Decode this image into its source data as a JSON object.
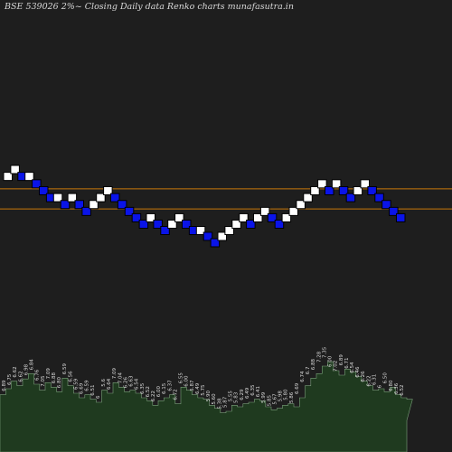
{
  "chart_data": {
    "type": "renko",
    "title": "BSE 539026  2%~  Closing Daily data  Renko  charts munafasutra.in",
    "brick_size_pct": 2,
    "colors": {
      "background": "#1e1e1e",
      "up_brick": "#ffffff",
      "down_brick": "#0a14e8",
      "brick_border": "#000000",
      "reference_line": "#c8780a",
      "volume_fill": "#1f3a1f",
      "volume_stroke": "#7aa07a",
      "label_color": "#dddddd"
    },
    "bricks": [
      {
        "dir": "up",
        "level": 6.89
      },
      {
        "dir": "up",
        "level": 7.02
      },
      {
        "dir": "down",
        "level": 6.89
      },
      {
        "dir": "up",
        "level": 6.89
      },
      {
        "dir": "down",
        "level": 6.75
      },
      {
        "dir": "down",
        "level": 6.62
      },
      {
        "dir": "down",
        "level": 6.49
      },
      {
        "dir": "up",
        "level": 6.49
      },
      {
        "dir": "down",
        "level": 6.36
      },
      {
        "dir": "up",
        "level": 6.49
      },
      {
        "dir": "down",
        "level": 6.36
      },
      {
        "dir": "down",
        "level": 6.23
      },
      {
        "dir": "up",
        "level": 6.36
      },
      {
        "dir": "up",
        "level": 6.49
      },
      {
        "dir": "up",
        "level": 6.62
      },
      {
        "dir": "down",
        "level": 6.49
      },
      {
        "dir": "down",
        "level": 6.36
      },
      {
        "dir": "down",
        "level": 6.23
      },
      {
        "dir": "down",
        "level": 6.11
      },
      {
        "dir": "down",
        "level": 5.99
      },
      {
        "dir": "up",
        "level": 6.11
      },
      {
        "dir": "down",
        "level": 5.99
      },
      {
        "dir": "down",
        "level": 5.87
      },
      {
        "dir": "up",
        "level": 5.99
      },
      {
        "dir": "up",
        "level": 6.11
      },
      {
        "dir": "down",
        "level": 5.99
      },
      {
        "dir": "down",
        "level": 5.87
      },
      {
        "dir": "up",
        "level": 5.87
      },
      {
        "dir": "down",
        "level": 5.76
      },
      {
        "dir": "down",
        "level": 5.64
      },
      {
        "dir": "up",
        "level": 5.76
      },
      {
        "dir": "up",
        "level": 5.87
      },
      {
        "dir": "up",
        "level": 5.99
      },
      {
        "dir": "up",
        "level": 6.11
      },
      {
        "dir": "down",
        "level": 5.99
      },
      {
        "dir": "up",
        "level": 6.11
      },
      {
        "dir": "up",
        "level": 6.23
      },
      {
        "dir": "down",
        "level": 6.11
      },
      {
        "dir": "down",
        "level": 5.99
      },
      {
        "dir": "up",
        "level": 6.11
      },
      {
        "dir": "up",
        "level": 6.23
      },
      {
        "dir": "up",
        "level": 6.36
      },
      {
        "dir": "up",
        "level": 6.49
      },
      {
        "dir": "up",
        "level": 6.62
      },
      {
        "dir": "up",
        "level": 6.75
      },
      {
        "dir": "down",
        "level": 6.62
      },
      {
        "dir": "up",
        "level": 6.75
      },
      {
        "dir": "down",
        "level": 6.62
      },
      {
        "dir": "down",
        "level": 6.49
      },
      {
        "dir": "up",
        "level": 6.62
      },
      {
        "dir": "up",
        "level": 6.75
      },
      {
        "dir": "down",
        "level": 6.62
      },
      {
        "dir": "down",
        "level": 6.49
      },
      {
        "dir": "down",
        "level": 6.36
      },
      {
        "dir": "down",
        "level": 6.23
      },
      {
        "dir": "down",
        "level": 6.11
      }
    ],
    "reference_lines": [
      6.58,
      6.2
    ],
    "volume_labels": [
      "6.89",
      "6.75",
      "6.62",
      "6.62",
      "6.98",
      "6.84",
      "6.76",
      "7.05",
      "7.09",
      "6.88",
      "6.80",
      "6.59",
      "6.56",
      "6.59",
      "6.69",
      "6.59",
      "6.51",
      "6",
      "5.6",
      "6.64",
      "7.09",
      "7.04",
      "6.26",
      "6.63",
      "6.54",
      "6.35",
      "6.52",
      "6.22",
      "6.00",
      "6.15",
      "6.37",
      "6.72",
      "6.55",
      "6.00",
      "5.87",
      "6.49",
      "5.75",
      "5.90",
      "5.60",
      "5.38",
      "5.87",
      "5.55",
      "5.83",
      "6.29",
      "6.49",
      "6.35",
      "6.41",
      "5.99",
      "5.85",
      "5.67",
      "5.98",
      "5.80",
      "5.86",
      "6.69",
      "6.74",
      "6.7",
      "6.88",
      "7.28",
      "7.35",
      "6.00",
      "7.02",
      "6.89",
      "6.71",
      "6.54",
      "6.46",
      "6.26",
      "6.22",
      "6.31",
      "6",
      "6.50",
      "6.80",
      "6.36",
      "6.52"
    ],
    "volume_profile": [
      34,
      42,
      52,
      46,
      55,
      62,
      48,
      40,
      50,
      44,
      38,
      56,
      46,
      36,
      30,
      34,
      28,
      24,
      40,
      36,
      50,
      44,
      38,
      40,
      36,
      30,
      26,
      20,
      26,
      30,
      34,
      22,
      44,
      40,
      34,
      30,
      28,
      20,
      16,
      10,
      12,
      20,
      18,
      22,
      24,
      28,
      26,
      18,
      14,
      16,
      20,
      22,
      18,
      30,
      46,
      56,
      62,
      72,
      78,
      66,
      60,
      68,
      64,
      58,
      52,
      46,
      40,
      42,
      38,
      44,
      34,
      30,
      28
    ]
  }
}
